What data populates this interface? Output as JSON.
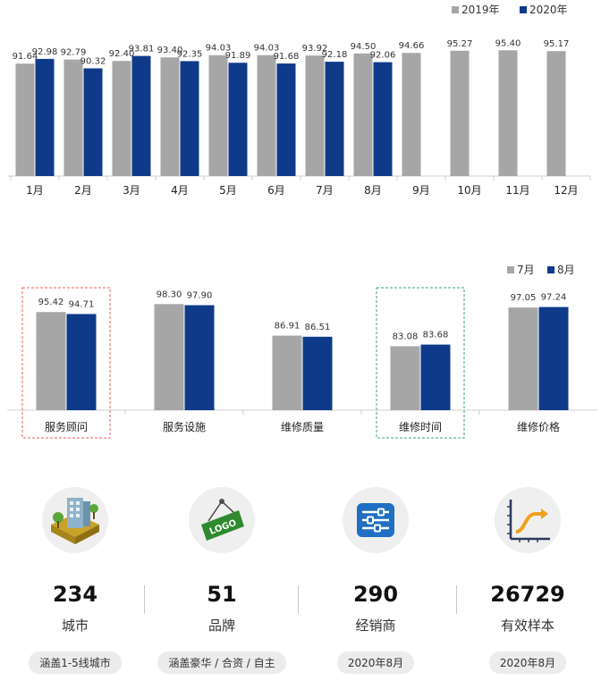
{
  "chart_data": [
    {
      "type": "bar",
      "categories": [
        "1月",
        "2月",
        "3月",
        "4月",
        "5月",
        "6月",
        "7月",
        "8月",
        "9月",
        "10月",
        "11月",
        "12月"
      ],
      "series": [
        {
          "name": "2019年",
          "color": "#a6a6a6",
          "values": [
            91.64,
            92.79,
            92.4,
            93.4,
            94.03,
            94.03,
            93.92,
            94.5,
            94.66,
            95.27,
            95.4,
            95.17
          ],
          "labels": [
            "91.64",
            "92.79",
            "92.40",
            "93.40",
            "94.03",
            "94.03",
            "93.92",
            "94.50",
            "94.66",
            "95.27",
            "95.40",
            "95.17"
          ]
        },
        {
          "name": "2020年",
          "color": "#0f3a8a",
          "values": [
            92.98,
            90.32,
            93.81,
            92.35,
            91.89,
            91.68,
            92.18,
            92.06,
            null,
            null,
            null,
            null
          ],
          "labels": [
            "92.98",
            "90.32",
            "93.81",
            "92.35",
            "91.89",
            "91.68",
            "92.18",
            "92.06",
            "",
            "",
            "",
            ""
          ]
        }
      ],
      "legend": "top-right"
    },
    {
      "type": "bar",
      "categories": [
        "服务顾问",
        "服务设施",
        "维修质量",
        "维修时间",
        "维修价格"
      ],
      "series": [
        {
          "name": "7月",
          "color": "#a6a6a6",
          "values": [
            95.42,
            98.3,
            86.91,
            83.08,
            97.05
          ],
          "labels": [
            "95.42",
            "98.30",
            "86.91",
            "83.08",
            "97.05"
          ]
        },
        {
          "name": "8月",
          "color": "#0f3a8a",
          "values": [
            94.71,
            97.9,
            86.51,
            83.68,
            97.24
          ],
          "labels": [
            "94.71",
            "97.90",
            "86.51",
            "83.68",
            "97.24"
          ]
        }
      ],
      "legend": "top-right",
      "highlighted_categories": [
        "服务顾问",
        "维修时间"
      ],
      "highlight_colors": {
        "服务顾问": "#e8615f",
        "维修时间": "#3aa37a"
      }
    }
  ],
  "stats": [
    {
      "icon": "city-building-icon",
      "number": "234",
      "label": "城市",
      "tag": "涵盖1-5线城市"
    },
    {
      "icon": "logo-sign-icon",
      "number": "51",
      "label": "品牌",
      "tag": "涵盖豪华 / 合资 / 自主"
    },
    {
      "icon": "sliders-icon",
      "number": "290",
      "label": "经销商",
      "tag": "2020年8月"
    },
    {
      "icon": "growth-chart-icon",
      "number": "26729",
      "label": "有效样本",
      "tag": "2020年8月"
    }
  ],
  "logo_text": "LOGO"
}
